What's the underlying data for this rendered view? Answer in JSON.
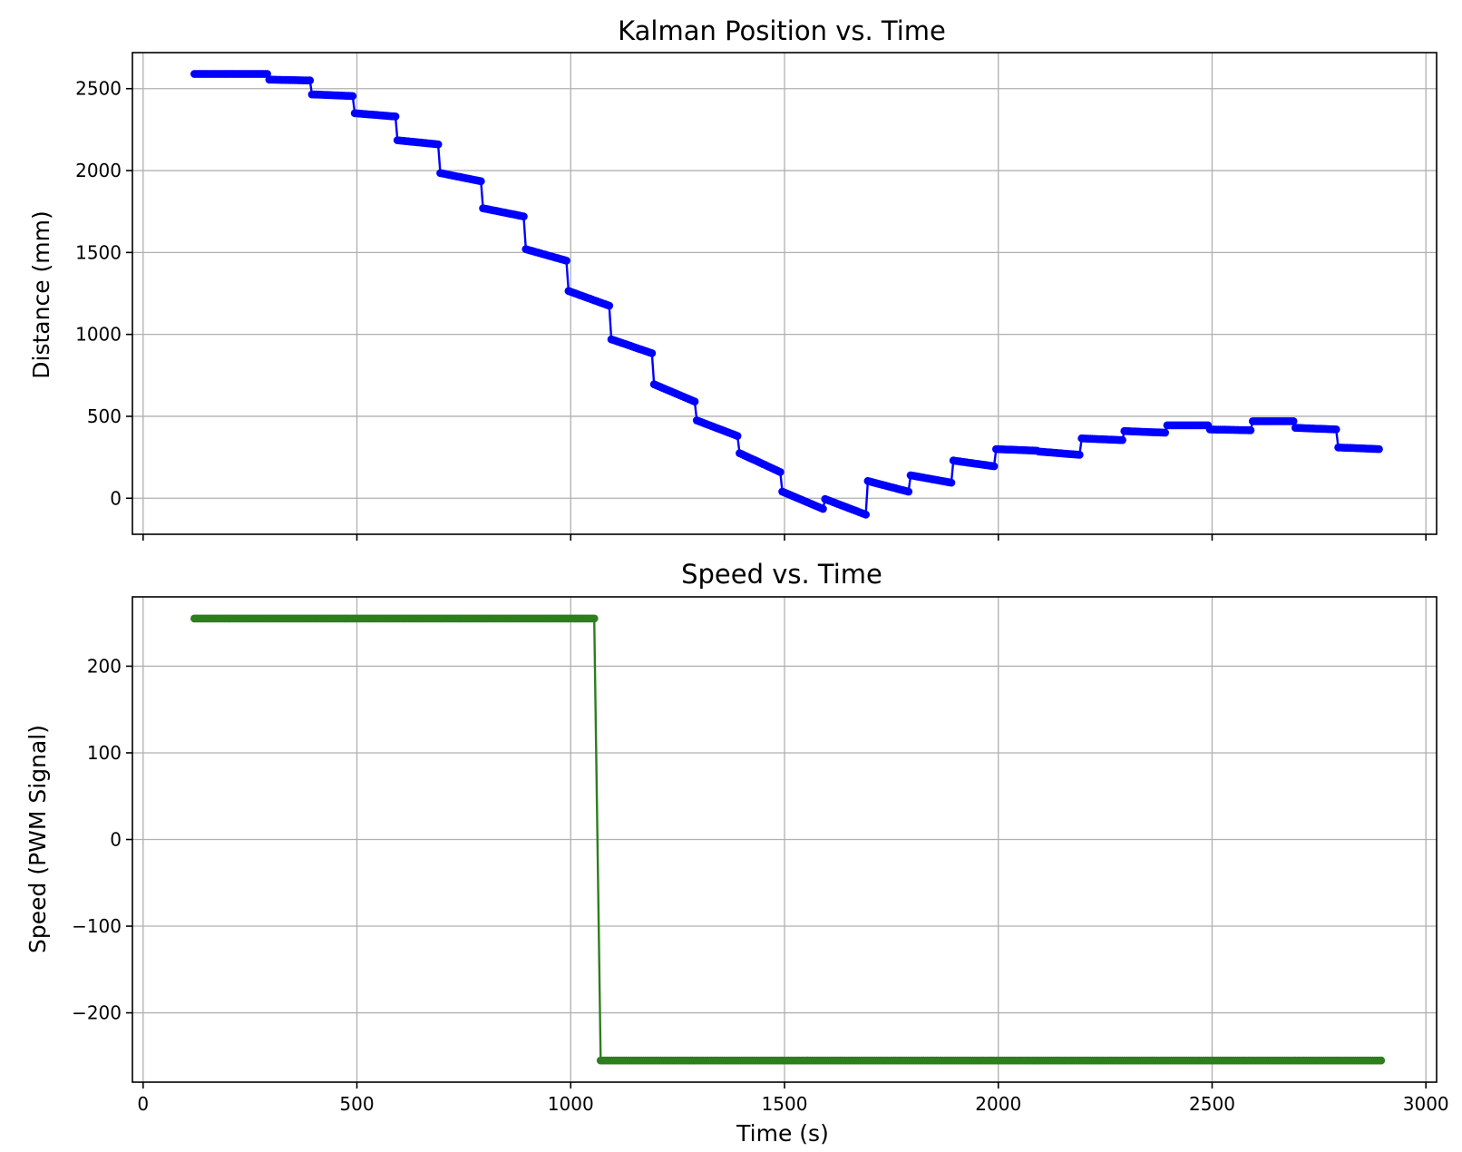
{
  "chart_data": [
    {
      "type": "line",
      "title": "Kalman Position vs. Time",
      "xlabel": "",
      "ylabel": "Distance (mm)",
      "xlim": [
        -25,
        3025
      ],
      "ylim": [
        -220,
        2720
      ],
      "xticks": [
        0,
        500,
        1000,
        1500,
        2000,
        2500,
        3000
      ],
      "xtick_labels_visible": false,
      "yticks": [
        0,
        500,
        1000,
        1500,
        2000,
        2500
      ],
      "ytick_labels": [
        "0",
        "500",
        "1000",
        "1500",
        "2000",
        "2500"
      ],
      "grid": true,
      "color": "#0000ff",
      "marker": "circle",
      "series": [
        {
          "steps": [
            {
              "t0": 120,
              "t1": 290,
              "v0": 2590,
              "v1": 2590
            },
            {
              "t0": 295,
              "t1": 390,
              "v0": 2555,
              "v1": 2550
            },
            {
              "t0": 395,
              "t1": 490,
              "v0": 2465,
              "v1": 2455
            },
            {
              "t0": 495,
              "t1": 590,
              "v0": 2350,
              "v1": 2330
            },
            {
              "t0": 595,
              "t1": 690,
              "v0": 2185,
              "v1": 2160
            },
            {
              "t0": 695,
              "t1": 790,
              "v0": 1985,
              "v1": 1935
            },
            {
              "t0": 795,
              "t1": 890,
              "v0": 1770,
              "v1": 1720
            },
            {
              "t0": 895,
              "t1": 990,
              "v0": 1520,
              "v1": 1450
            },
            {
              "t0": 995,
              "t1": 1090,
              "v0": 1265,
              "v1": 1175
            },
            {
              "t0": 1095,
              "t1": 1190,
              "v0": 970,
              "v1": 885
            },
            {
              "t0": 1195,
              "t1": 1290,
              "v0": 695,
              "v1": 590
            },
            {
              "t0": 1295,
              "t1": 1390,
              "v0": 475,
              "v1": 380
            },
            {
              "t0": 1395,
              "t1": 1490,
              "v0": 275,
              "v1": 160
            },
            {
              "t0": 1495,
              "t1": 1590,
              "v0": 40,
              "v1": -65
            },
            {
              "t0": 1595,
              "t1": 1690,
              "v0": -5,
              "v1": -100
            },
            {
              "t0": 1695,
              "t1": 1790,
              "v0": 105,
              "v1": 40
            },
            {
              "t0": 1795,
              "t1": 1890,
              "v0": 140,
              "v1": 95
            },
            {
              "t0": 1895,
              "t1": 1990,
              "v0": 230,
              "v1": 195
            },
            {
              "t0": 1995,
              "t1": 2090,
              "v0": 300,
              "v1": 290
            },
            {
              "t0": 2095,
              "t1": 2190,
              "v0": 285,
              "v1": 265
            },
            {
              "t0": 2195,
              "t1": 2290,
              "v0": 365,
              "v1": 355
            },
            {
              "t0": 2295,
              "t1": 2390,
              "v0": 410,
              "v1": 400
            },
            {
              "t0": 2395,
              "t1": 2490,
              "v0": 445,
              "v1": 445
            },
            {
              "t0": 2495,
              "t1": 2590,
              "v0": 420,
              "v1": 415
            },
            {
              "t0": 2595,
              "t1": 2690,
              "v0": 470,
              "v1": 470
            },
            {
              "t0": 2695,
              "t1": 2790,
              "v0": 430,
              "v1": 420
            },
            {
              "t0": 2795,
              "t1": 2890,
              "v0": 310,
              "v1": 300
            }
          ]
        }
      ]
    },
    {
      "type": "line",
      "title": "Speed vs. Time",
      "xlabel": "Time (s)",
      "ylabel": "Speed (PWM Signal)",
      "xlim": [
        -25,
        3025
      ],
      "ylim": [
        -280,
        280
      ],
      "xticks": [
        0,
        500,
        1000,
        1500,
        2000,
        2500,
        3000
      ],
      "xtick_labels": [
        "0",
        "500",
        "1000",
        "1500",
        "2000",
        "2500",
        "3000"
      ],
      "yticks": [
        -200,
        -100,
        0,
        100,
        200
      ],
      "ytick_labels": [
        "−200",
        "−100",
        "0",
        "100",
        "200"
      ],
      "grid": true,
      "color": "#2e7d1f",
      "marker": "circle",
      "series": [
        {
          "steps": [
            {
              "t0": 120,
              "t1": 1055,
              "v0": 255,
              "v1": 255
            },
            {
              "t0": 1070,
              "t1": 2895,
              "v0": -255,
              "v1": -255
            }
          ]
        }
      ]
    }
  ]
}
